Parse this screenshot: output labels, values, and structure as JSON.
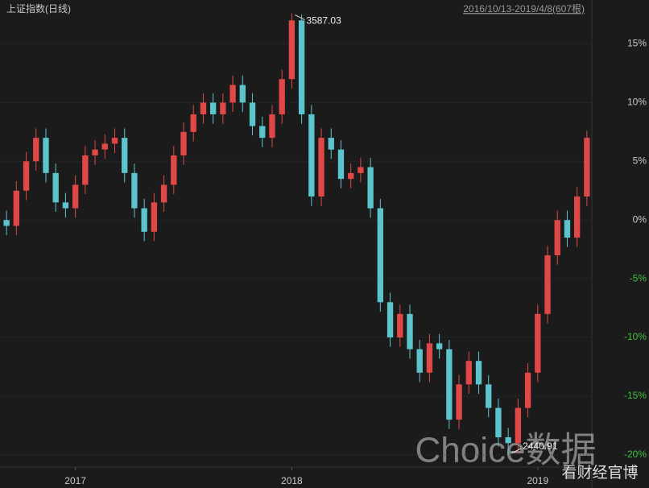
{
  "chart_data": {
    "type": "candlestick",
    "title": "上证指数(日线)",
    "subtitle": "2016/10/13-2019/4/8(607根)",
    "watermark": "Choice数据",
    "source": "看财经官博",
    "annotations": [
      "3587.03",
      "2440.91"
    ],
    "up_color": "#e04848",
    "down_color": "#5cc4cc",
    "grid": true,
    "categories": [
      null,
      null,
      null,
      null,
      null,
      null,
      null,
      "2017",
      null,
      null,
      null,
      null,
      null,
      null,
      null,
      null,
      null,
      null,
      null,
      null,
      null,
      null,
      null,
      null,
      null,
      null,
      null,
      null,
      null,
      "2018",
      null,
      null,
      null,
      null,
      null,
      null,
      null,
      null,
      null,
      null,
      null,
      null,
      null,
      null,
      null,
      null,
      null,
      null,
      null,
      null,
      null,
      null,
      null,
      null,
      "2019",
      null,
      null,
      null,
      null,
      null
    ],
    "open": [
      0,
      -0.5,
      2.5,
      5,
      7,
      4,
      1.5,
      1,
      3,
      5.5,
      6,
      6.5,
      7,
      4,
      1,
      -1,
      1.5,
      3,
      5.5,
      7.5,
      9,
      10,
      9,
      10,
      11.5,
      10,
      8,
      7,
      9,
      12,
      17,
      9,
      2,
      7,
      6,
      3.5,
      4,
      4.5,
      1,
      -7,
      -10,
      -8,
      -11,
      -13,
      -10.5,
      -11,
      -17,
      -14,
      -12,
      -14,
      -16,
      -18.5,
      -19,
      -16,
      -13,
      -8,
      -3,
      0,
      -1.5,
      2
    ],
    "close": [
      -0.5,
      2.5,
      5,
      7,
      4,
      1.5,
      1,
      3,
      5.5,
      6,
      6.5,
      7,
      4,
      1,
      -1,
      1.5,
      3,
      5.5,
      7.5,
      9,
      10,
      9,
      10,
      11.5,
      10,
      8,
      7,
      9,
      12,
      17,
      9,
      2,
      7,
      6,
      3.5,
      4,
      4.5,
      1,
      -7,
      -10,
      -8,
      -11,
      -13,
      -10.5,
      -11,
      -17,
      -14,
      -12,
      -14,
      -16,
      -18.5,
      -19,
      -16,
      -13,
      -8,
      -3,
      0,
      -1.5,
      2,
      7
    ],
    "high": [
      0.8,
      3.3,
      5.8,
      7.8,
      7.8,
      4.8,
      2.3,
      3.8,
      6.3,
      6.8,
      7.3,
      7.8,
      7.8,
      4.8,
      1.8,
      2.3,
      3.8,
      6.3,
      8.3,
      9.8,
      10.8,
      10.8,
      10.8,
      12.3,
      12.3,
      10.8,
      8.8,
      9.8,
      12.8,
      17.6,
      17.5,
      9.8,
      7.8,
      7.8,
      6.8,
      4.8,
      5.3,
      5.3,
      1.8,
      -6.2,
      -7.2,
      -7.2,
      -10.2,
      -9.7,
      -9.7,
      -10.2,
      -13.2,
      -11.2,
      -11.2,
      -13.2,
      -15.2,
      -17.7,
      -15.2,
      -12.2,
      -7.2,
      -2.2,
      0.8,
      0.8,
      2.8,
      7.6
    ],
    "low": [
      -1.3,
      -1.3,
      1.7,
      4.2,
      3.2,
      0.7,
      0.2,
      0.2,
      2.2,
      4.7,
      5.2,
      5.7,
      3.2,
      0.2,
      -1.8,
      -1.8,
      0.7,
      2.2,
      4.7,
      6.7,
      8.2,
      8.2,
      8.2,
      9.2,
      9.2,
      7.2,
      6.2,
      6.2,
      8.2,
      11.2,
      8.2,
      1.2,
      1.2,
      5.2,
      2.7,
      2.7,
      3.2,
      0.2,
      -7.8,
      -10.8,
      -10.8,
      -11.8,
      -13.8,
      -13.8,
      -11.8,
      -17.8,
      -17.8,
      -14.8,
      -14.8,
      -16.8,
      -19.3,
      -20,
      -19.8,
      -16.8,
      -13.8,
      -8.8,
      -3.8,
      -2.3,
      -2.3,
      1.2
    ],
    "ylim": [
      -20.9,
      17.5
    ],
    "yticks": [
      {
        "value": 15,
        "label": "15%"
      },
      {
        "value": 10,
        "label": "10%"
      },
      {
        "value": 5,
        "label": "5%"
      },
      {
        "value": 0,
        "label": "0%"
      },
      {
        "value": -5,
        "label": "-5%"
      },
      {
        "value": -10,
        "label": "-10%"
      },
      {
        "value": -15,
        "label": "-15%"
      },
      {
        "value": -20,
        "label": "-20%"
      }
    ]
  }
}
